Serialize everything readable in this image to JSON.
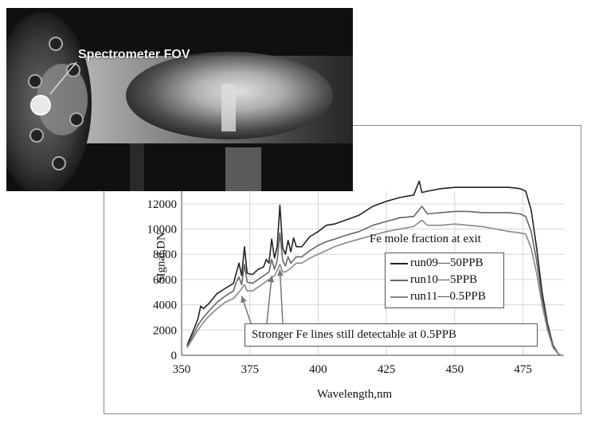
{
  "photo": {
    "label": "Spectrometer FOV"
  },
  "chart_data": {
    "type": "line",
    "xlabel": "Wavelength,nm",
    "ylabel": "SIgnal,DN",
    "xlim": [
      350,
      490
    ],
    "ylim": [
      0,
      13000
    ],
    "xticks": [
      "350",
      "375",
      "400",
      "425",
      "450",
      "475"
    ],
    "yticks": [
      "0",
      "2000",
      "4000",
      "6000",
      "8000",
      "10000",
      "12000"
    ],
    "legend_title": "Fe mole fraction at exit",
    "legend_position": "center-right",
    "annotation": "Stronger Fe lines still detectable at 0.5PPB",
    "series": [
      {
        "name": "run09—50PPB",
        "color": "#222222",
        "x": [
          352,
          354,
          356,
          357,
          358,
          360,
          363,
          366,
          369,
          370,
          371,
          372,
          373,
          374,
          376,
          378,
          380,
          381,
          382,
          383,
          384,
          385,
          386,
          387,
          388,
          389,
          390,
          391,
          392,
          394,
          397,
          400,
          403,
          406,
          410,
          415,
          420,
          425,
          430,
          435,
          437,
          438,
          440,
          445,
          450,
          455,
          460,
          465,
          470,
          474,
          476,
          478,
          480,
          482,
          484,
          486,
          488,
          489
        ],
        "y": [
          800,
          1800,
          2900,
          3900,
          3700,
          4100,
          4900,
          5300,
          5700,
          6500,
          7300,
          6300,
          8600,
          6500,
          6400,
          6800,
          7000,
          7600,
          7300,
          9200,
          7700,
          8600,
          11900,
          8500,
          8000,
          9100,
          8200,
          9300,
          8600,
          8600,
          9400,
          9800,
          10300,
          10400,
          10700,
          11100,
          11800,
          12200,
          12500,
          12700,
          13800,
          12900,
          13000,
          13200,
          13300,
          13300,
          13300,
          13300,
          13300,
          13200,
          13000,
          11500,
          8500,
          5000,
          2500,
          800,
          100,
          0
        ]
      },
      {
        "name": "run10—5PPB",
        "color": "#666666",
        "x": [
          352,
          354,
          356,
          358,
          360,
          363,
          366,
          369,
          370,
          371,
          372,
          373,
          374,
          376,
          378,
          380,
          382,
          383,
          384,
          385,
          386,
          387,
          388,
          389,
          390,
          392,
          394,
          397,
          400,
          403,
          406,
          410,
          415,
          420,
          425,
          430,
          435,
          438,
          440,
          445,
          450,
          455,
          460,
          465,
          470,
          474,
          476,
          478,
          480,
          482,
          484,
          486,
          488,
          489
        ],
        "y": [
          700,
          1500,
          2400,
          3000,
          3500,
          4200,
          4700,
          5100,
          5800,
          6200,
          5600,
          7200,
          5800,
          5700,
          6000,
          6300,
          6600,
          7600,
          6800,
          7500,
          9700,
          7500,
          7100,
          7800,
          7300,
          7800,
          7800,
          8300,
          8700,
          9000,
          9200,
          9500,
          9800,
          10300,
          10600,
          10900,
          11000,
          11800,
          11200,
          11300,
          11400,
          11400,
          11300,
          11300,
          11300,
          11200,
          11000,
          9800,
          7500,
          4500,
          2200,
          700,
          100,
          0
        ]
      },
      {
        "name": "run11—0.5PPB",
        "color": "#888888",
        "x": [
          352,
          354,
          356,
          358,
          360,
          363,
          366,
          369,
          371,
          373,
          374,
          376,
          378,
          380,
          382,
          384,
          385,
          386,
          387,
          388,
          390,
          392,
          394,
          397,
          400,
          403,
          406,
          410,
          415,
          420,
          425,
          430,
          435,
          438,
          440,
          445,
          450,
          455,
          460,
          465,
          470,
          474,
          476,
          478,
          480,
          482,
          484,
          486,
          488,
          489
        ],
        "y": [
          600,
          1300,
          2000,
          2600,
          3100,
          3700,
          4200,
          4500,
          5000,
          5600,
          5100,
          5100,
          5400,
          5700,
          6000,
          6300,
          6700,
          7200,
          6600,
          6600,
          6900,
          7300,
          7300,
          7700,
          8000,
          8300,
          8600,
          8900,
          9200,
          9500,
          9800,
          10000,
          10200,
          10700,
          10300,
          10300,
          10400,
          10300,
          10200,
          10000,
          9800,
          9700,
          9600,
          8500,
          6500,
          4000,
          2000,
          600,
          100,
          0
        ]
      }
    ],
    "arrow_targets": [
      {
        "x": 372,
        "y": 4700
      },
      {
        "x": 383,
        "y": 6300
      },
      {
        "x": 386,
        "y": 6800
      }
    ]
  }
}
